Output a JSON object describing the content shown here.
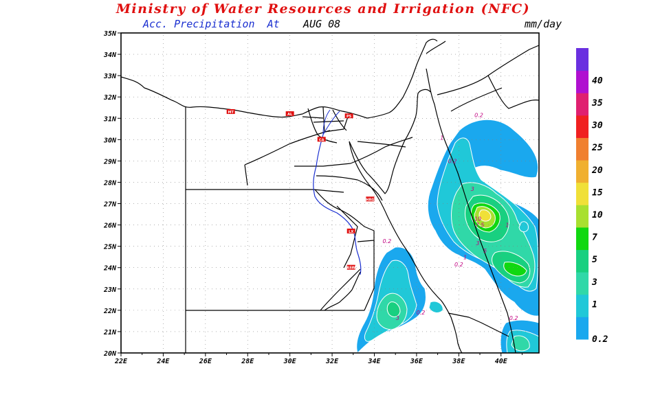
{
  "header": {
    "title": "Ministry of Water Resources and Irrigation (NFC)",
    "subtitle": "Acc. Precipitation  At",
    "date": "AUG 08",
    "units": "mm/day"
  },
  "axes": {
    "lat_labels": [
      "20N",
      "21N",
      "22N",
      "23N",
      "24N",
      "25N",
      "26N",
      "27N",
      "28N",
      "29N",
      "30N",
      "31N",
      "32N",
      "33N",
      "34N",
      "35N"
    ],
    "lon_labels": [
      "22E",
      "24E",
      "26E",
      "28E",
      "30E",
      "32E",
      "34E",
      "36E",
      "38E",
      "40E"
    ],
    "lat_range": [
      20,
      35
    ],
    "lon_range": [
      22,
      41.8
    ]
  },
  "colorbar": {
    "levels": [
      "0.2",
      "1",
      "3",
      "5",
      "7",
      "10",
      "15",
      "20",
      "25",
      "30",
      "35",
      "40"
    ],
    "colors": [
      "#1aa8ee",
      "#20c8d8",
      "#30d8a8",
      "#18d080",
      "#10d810",
      "#a8e030",
      "#f0e038",
      "#f0b030",
      "#f08030",
      "#f02020",
      "#e02070",
      "#b010d0",
      "#6a30e0"
    ]
  },
  "contour_labels": [
    {
      "text": "0.2",
      "lon": 38.95,
      "lat": 31.05
    },
    {
      "text": "1",
      "lon": 37.2,
      "lat": 30.0
    },
    {
      "text": "0.2",
      "lon": 37.7,
      "lat": 28.9
    },
    {
      "text": "3",
      "lon": 38.65,
      "lat": 27.6
    },
    {
      "text": "10",
      "lon": 38.9,
      "lat": 26.2
    },
    {
      "text": "7.5",
      "lon": 39.0,
      "lat": 25.9
    },
    {
      "text": "1",
      "lon": 40.3,
      "lat": 25.9
    },
    {
      "text": "3",
      "lon": 38.9,
      "lat": 25.05
    },
    {
      "text": "5",
      "lon": 39.25,
      "lat": 24.7
    },
    {
      "text": "1",
      "lon": 38.3,
      "lat": 24.4
    },
    {
      "text": "0.2",
      "lon": 38.0,
      "lat": 24.05
    },
    {
      "text": "0.2",
      "lon": 34.6,
      "lat": 25.15
    },
    {
      "text": "3",
      "lon": 35.1,
      "lat": 21.55
    },
    {
      "text": "0.2",
      "lon": 36.2,
      "lat": 21.8
    },
    {
      "text": "0.2",
      "lon": 40.6,
      "lat": 21.55
    }
  ],
  "station_labels": [
    {
      "text": "MT",
      "lon": 27.2,
      "lat": 31.3
    },
    {
      "text": "AL",
      "lon": 30.0,
      "lat": 31.2
    },
    {
      "text": "PS",
      "lon": 32.8,
      "lat": 31.1
    },
    {
      "text": "CA",
      "lon": 31.5,
      "lat": 30.0
    },
    {
      "text": "HRG",
      "lon": 33.8,
      "lat": 27.2
    },
    {
      "text": "LX",
      "lon": 32.9,
      "lat": 25.7
    },
    {
      "text": "ASW",
      "lon": 32.9,
      "lat": 24.0
    }
  ]
}
